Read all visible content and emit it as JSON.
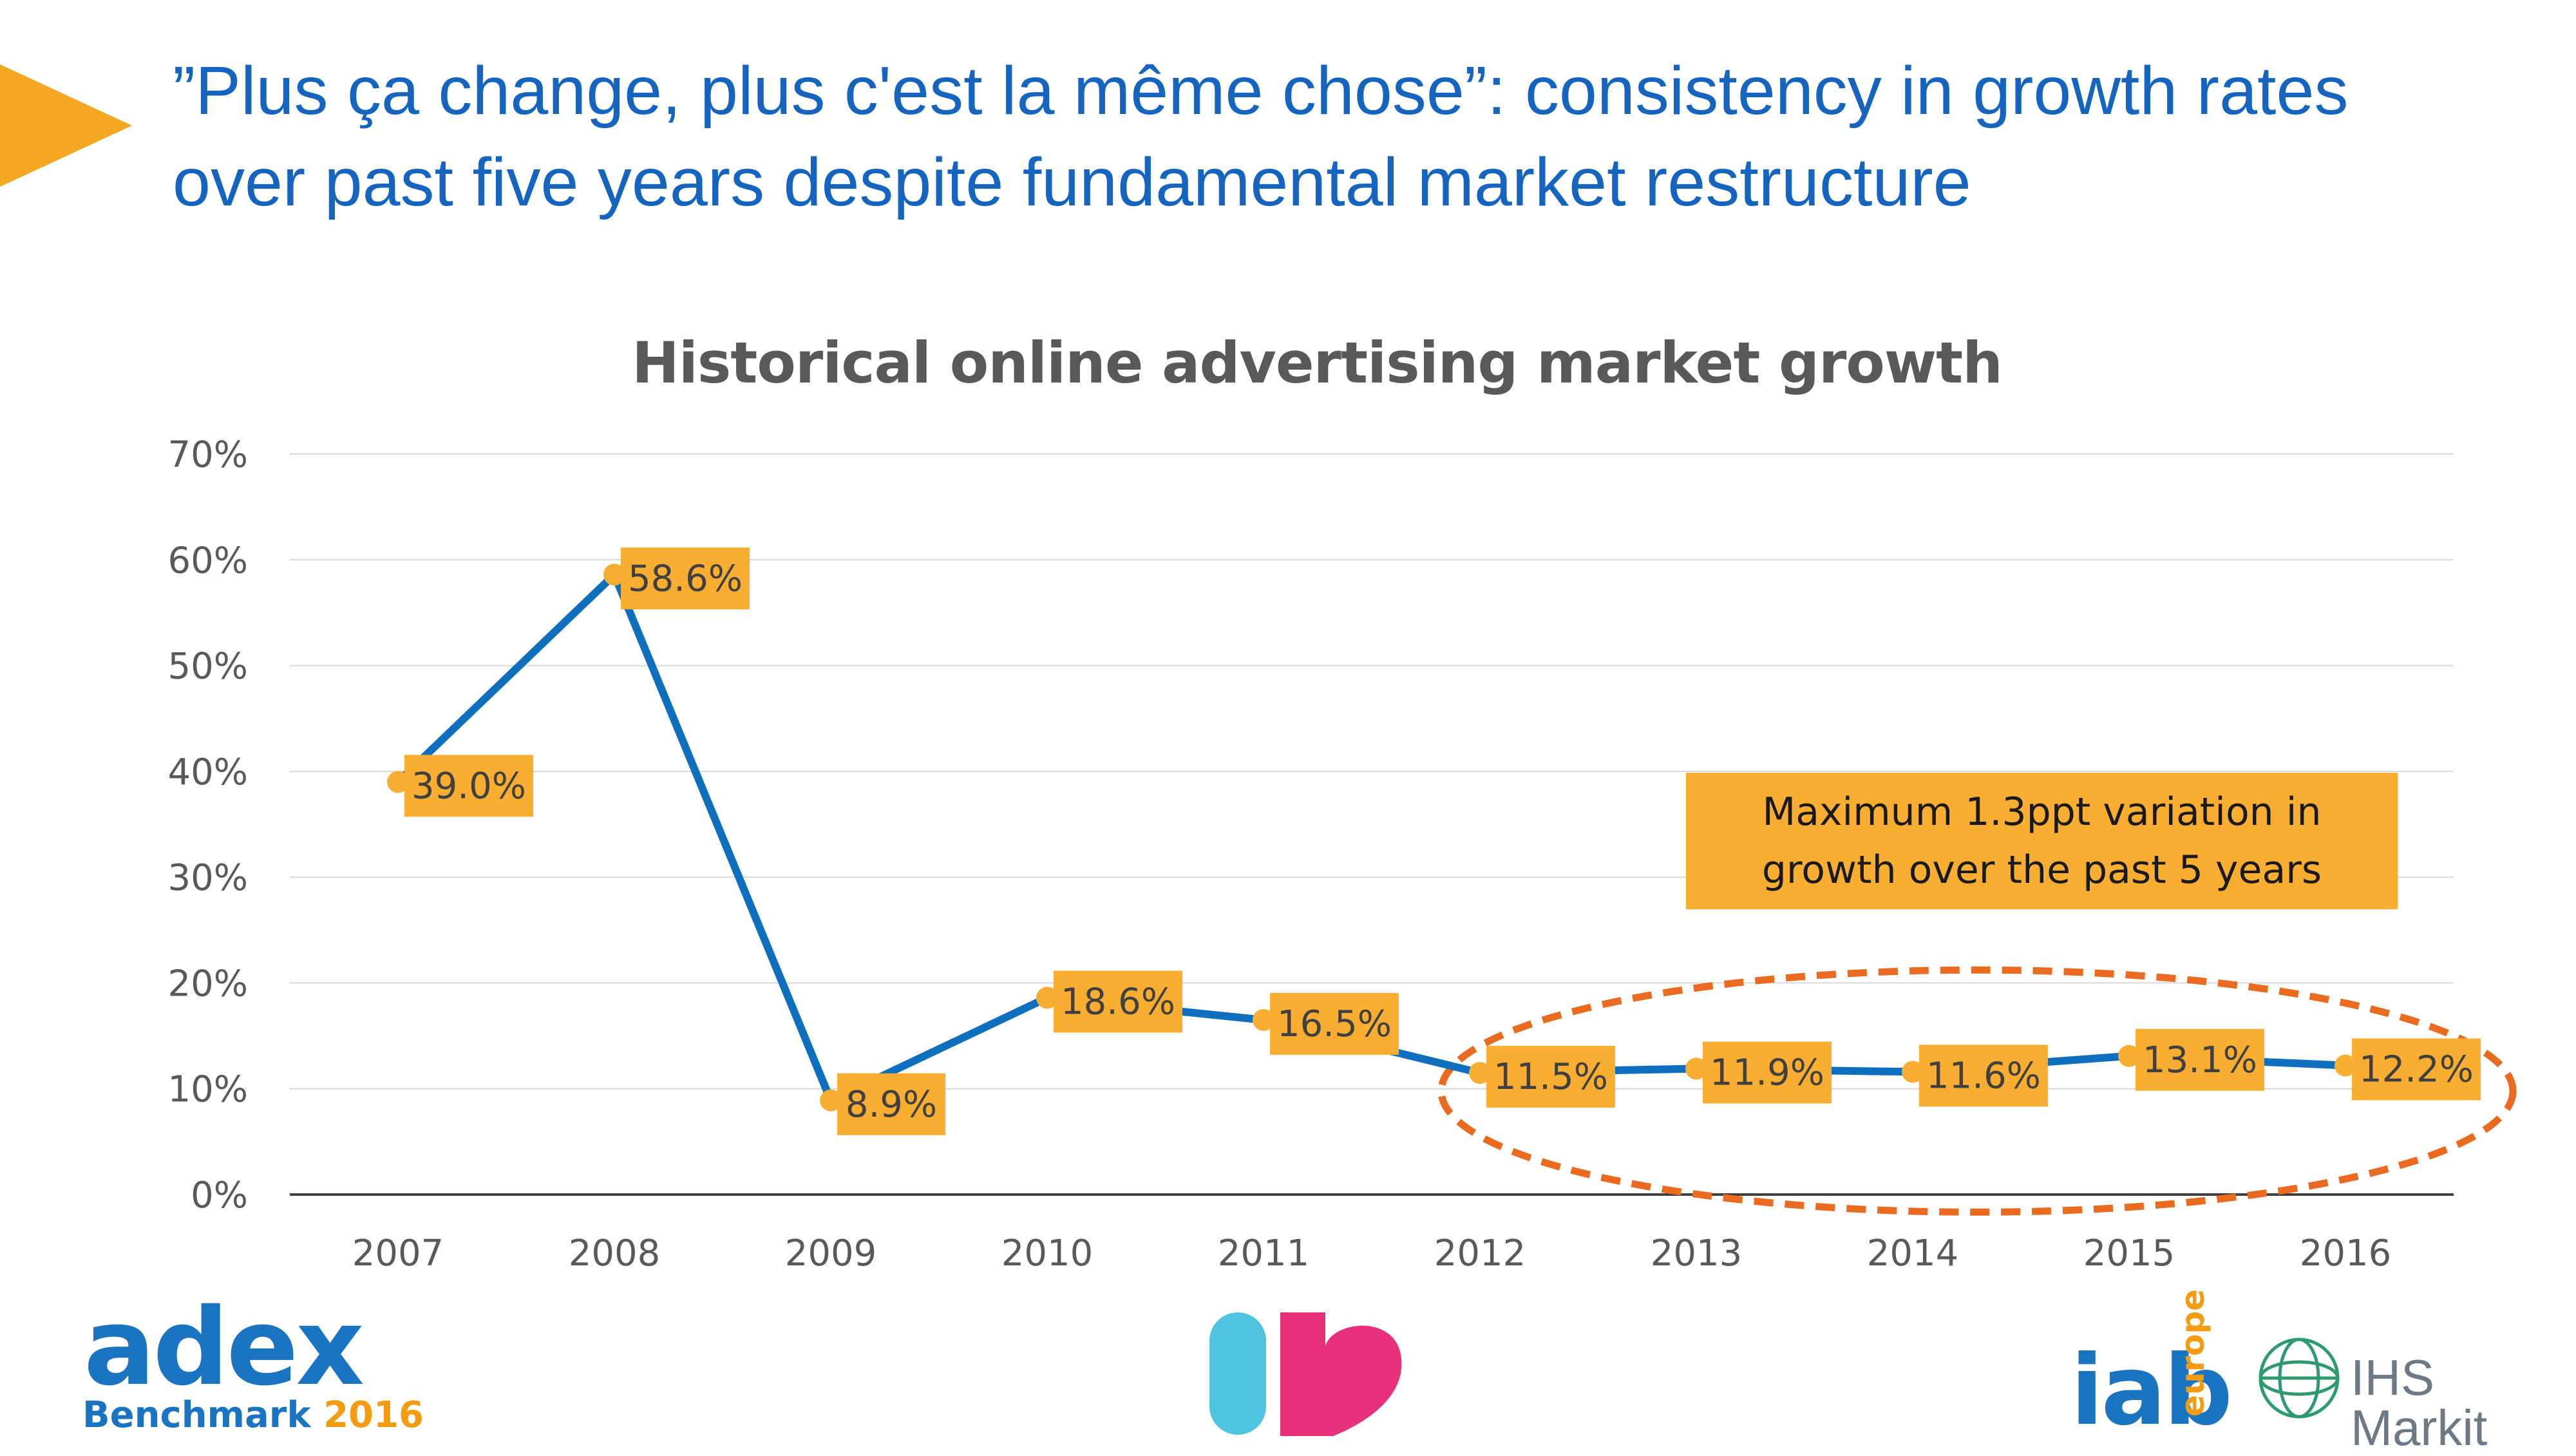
{
  "headline": {
    "line1": "”Plus ça change, plus c'est la même chose”: consistency in growth rates",
    "line2": "over past five years despite fundamental market restructure"
  },
  "chart_data": {
    "type": "line",
    "title": "Historical online advertising market growth",
    "xlabel": "",
    "ylabel": "",
    "categories": [
      "2007",
      "2008",
      "2009",
      "2010",
      "2011",
      "2012",
      "2013",
      "2014",
      "2015",
      "2016"
    ],
    "values": [
      39.0,
      58.6,
      8.9,
      18.6,
      16.5,
      11.5,
      11.9,
      11.6,
      13.1,
      12.2
    ],
    "data_labels": [
      "39.0%",
      "58.6%",
      "8.9%",
      "18.6%",
      "16.5%",
      "11.5%",
      "11.9%",
      "11.6%",
      "13.1%",
      "12.2%"
    ],
    "ylim": [
      0,
      70
    ],
    "yticks": [
      0,
      10,
      20,
      30,
      40,
      50,
      60,
      70
    ],
    "ytick_labels": [
      "0%",
      "10%",
      "20%",
      "30%",
      "40%",
      "50%",
      "60%",
      "70%"
    ],
    "grid": true,
    "legend": "none",
    "annotation": {
      "line1": "Maximum 1.3ppt variation in",
      "line2": "growth over the past 5 years",
      "highlight_range": [
        "2012",
        "2016"
      ]
    },
    "colors": {
      "line": "#0e6fbe",
      "marker": "#f9ae32",
      "label_box": "#f9ae32",
      "ellipse": "#ea6a1f",
      "grid": "#d9d9d9"
    }
  },
  "logos": {
    "adex_word": "adex",
    "adex_sub": "Benchmark",
    "adex_year": "2016",
    "iab_word": "iab",
    "iab_suffix": "europe",
    "ihs_word": "IHS Markit"
  },
  "colors": {
    "headline": "#1565c0",
    "arrow": "#f5a623",
    "heart_left": "#4fc3e0",
    "heart_right": "#e8317a"
  }
}
